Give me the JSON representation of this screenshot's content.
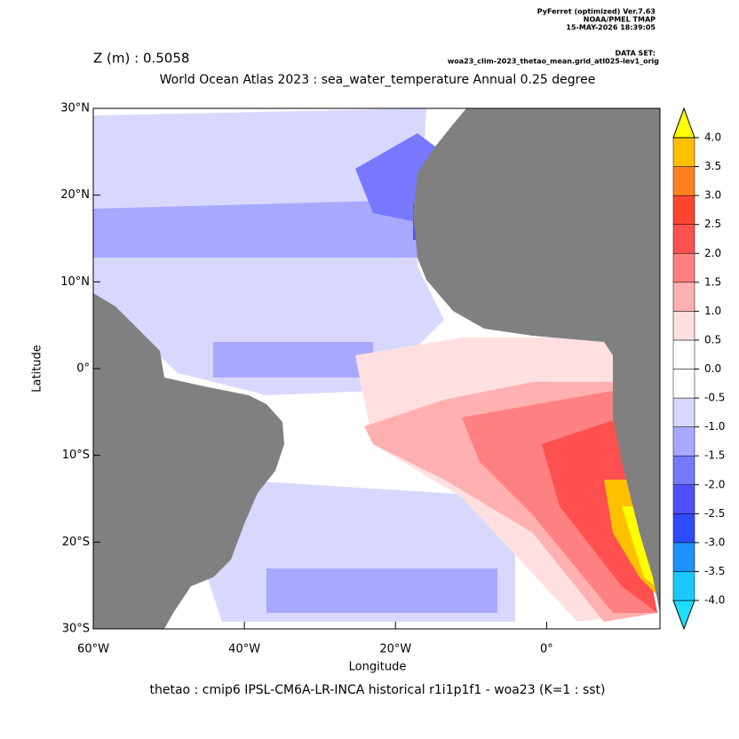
{
  "header": {
    "program": "PyFerret (optimized) Ver.7.63",
    "org": "NOAA/PMEL TMAP",
    "date": "15-MAY-2026 18:39:05",
    "dataset_label": "DATA SET:",
    "dataset": "woa23_clim-2023_thetao_mean.grid_atl025-lev1_orig"
  },
  "chart_data": {
    "type": "map",
    "title": "World Ocean Atlas 2023 : sea_water_temperature Annual  0.25 degree",
    "subtitle": "Z (m) : 0.5058",
    "x_label": "Longitude",
    "y_label": "Latitude",
    "caption": "thetao : cmip6 IPSL-CM6A-LR-INCA historical r1i1p1f1 - woa23  (K=1 : sst)",
    "xlim": [
      -60,
      15
    ],
    "ylim": [
      -30,
      30
    ],
    "xticks": [
      {
        "value": -60,
        "label": "60°W"
      },
      {
        "value": -40,
        "label": "40°W"
      },
      {
        "value": -20,
        "label": "20°W"
      },
      {
        "value": 0,
        "label": "0°"
      }
    ],
    "yticks": [
      {
        "value": -30,
        "label": "30°S"
      },
      {
        "value": -20,
        "label": "20°S"
      },
      {
        "value": -10,
        "label": "10°S"
      },
      {
        "value": 0,
        "label": "0°"
      },
      {
        "value": 10,
        "label": "10°N"
      },
      {
        "value": 20,
        "label": "20°N"
      },
      {
        "value": 30,
        "label": "30°N"
      }
    ],
    "colorbar": {
      "levels": [
        -4.0,
        -3.5,
        -3.0,
        -2.5,
        -2.0,
        -1.5,
        -1.0,
        -0.5,
        0.0,
        0.5,
        1.0,
        1.5,
        2.0,
        2.5,
        3.0,
        3.5,
        4.0
      ],
      "colors": [
        "#1ddcff",
        "#1ac8ff",
        "#1e90ff",
        "#2e4bff",
        "#4f4fff",
        "#7878ff",
        "#a8a8ff",
        "#d8d8ff",
        "#ffffff",
        "#ffffff",
        "#ffe0e0",
        "#ffb0b0",
        "#ff8080",
        "#ff5050",
        "#ff4530",
        "#ff8020",
        "#ffc000",
        "#ffff00"
      ]
    }
  }
}
